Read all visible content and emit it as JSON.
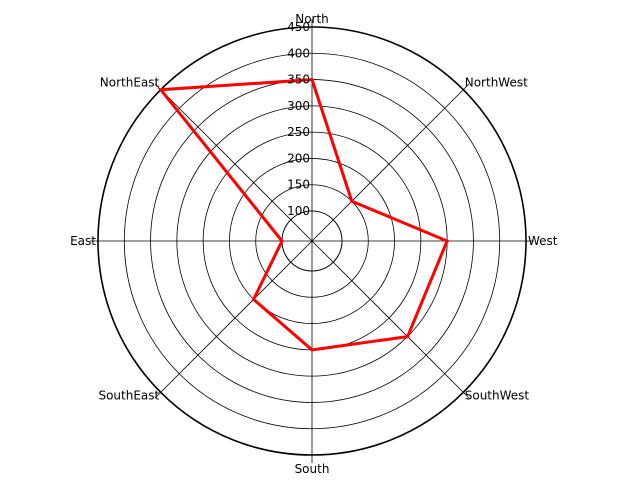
{
  "chart_data": {
    "type": "radar",
    "axes": [
      "North",
      "NorthWest",
      "West",
      "SouthWest",
      "South",
      "SouthEast",
      "East",
      "NorthEast"
    ],
    "radial_ticks": [
      100,
      150,
      200,
      250,
      300,
      350,
      400,
      450
    ],
    "rlim": [
      100,
      450
    ],
    "grid": true,
    "legend": "none",
    "series": [
      {
        "values": [
          350,
          150,
          300,
          300,
          250,
          200,
          100,
          450
        ],
        "color": "#ff0000"
      }
    ]
  }
}
